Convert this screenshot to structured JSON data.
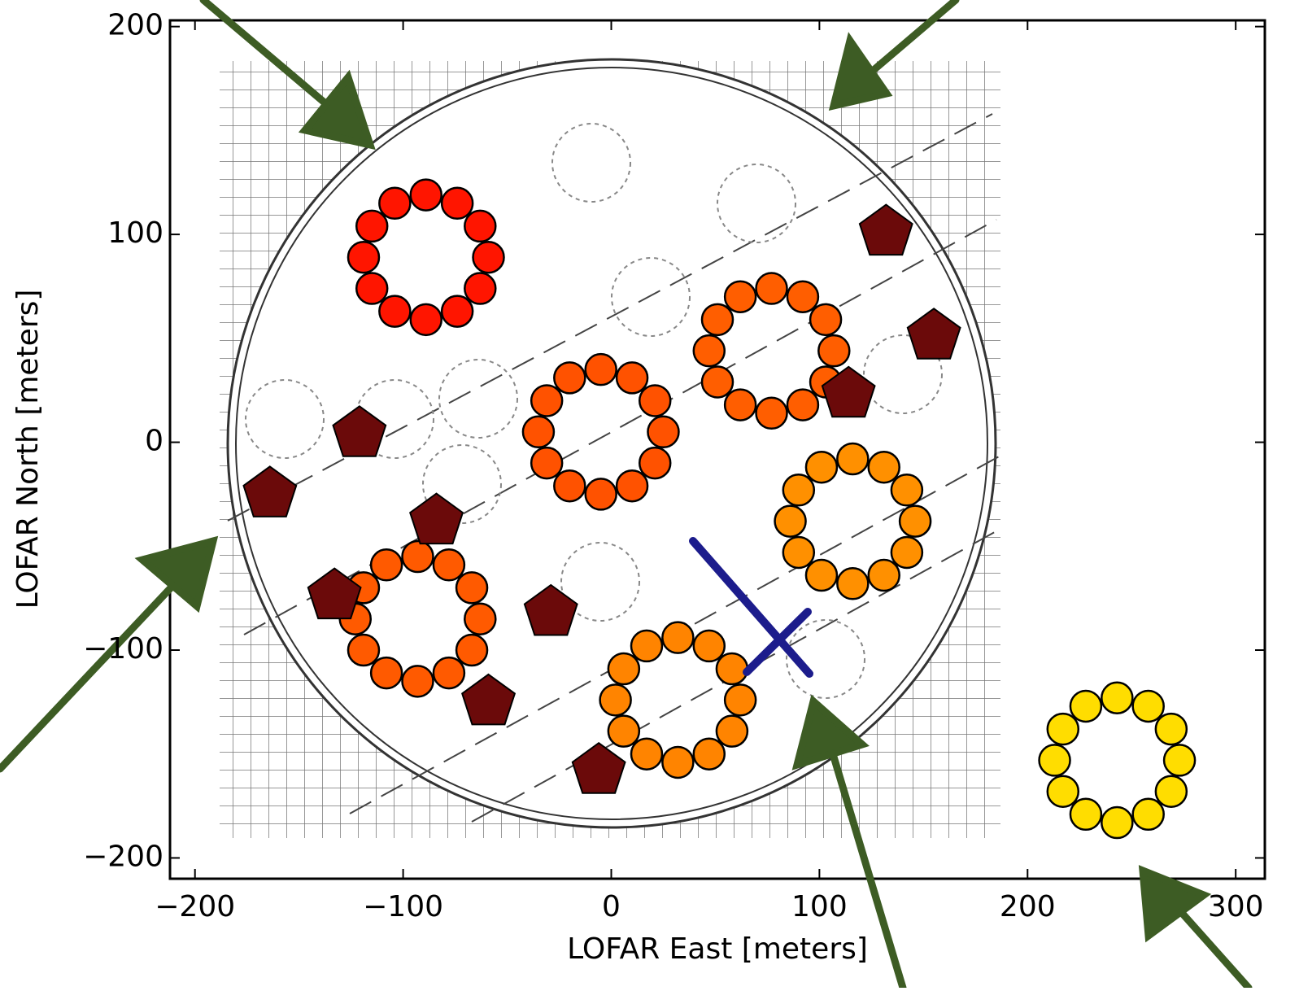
{
  "chart_data": {
    "type": "scatter",
    "xlabel": "LOFAR East [meters]",
    "ylabel": "LOFAR North [meters]",
    "xlim": [
      -212,
      314
    ],
    "ylim": [
      -210,
      203
    ],
    "xticks": [
      {
        "value": -200,
        "label": "−200"
      },
      {
        "value": -100,
        "label": "−100"
      },
      0,
      100,
      200,
      300
    ],
    "yticks": [
      {
        "value": -200,
        "label": "−200"
      },
      {
        "value": -100,
        "label": "−100"
      },
      0,
      100,
      200
    ],
    "grid": false,
    "series": [
      {
        "color": "#ff1500",
        "marker": "circle",
        "x": [
          -59,
          -63,
          -74,
          -89,
          -104,
          -115,
          -119,
          -115,
          -104,
          -89,
          -74,
          -63
        ],
        "y": [
          89,
          104,
          115,
          119,
          115,
          104,
          89,
          74,
          63,
          59,
          63,
          74
        ]
      },
      {
        "color": "#ff5200",
        "marker": "circle",
        "x": [
          25,
          21,
          10,
          -5,
          -20,
          -31,
          -35,
          -31,
          -20,
          -5,
          10,
          21
        ],
        "y": [
          5,
          20,
          31,
          35,
          31,
          20,
          5,
          -10,
          -21,
          -25,
          -21,
          -10
        ]
      },
      {
        "color": "#ff5e00",
        "marker": "circle",
        "x": [
          107,
          103,
          92,
          77,
          62,
          51,
          47,
          51,
          62,
          77,
          92,
          103
        ],
        "y": [
          44,
          59,
          70,
          74,
          70,
          59,
          44,
          29,
          18,
          14,
          18,
          29
        ]
      },
      {
        "color": "#ff5a00",
        "marker": "circle",
        "x": [
          -63,
          -67,
          -78,
          -93,
          -108,
          -119,
          -123,
          -119,
          -108,
          -93,
          -78,
          -67
        ],
        "y": [
          -85,
          -70,
          -59,
          -55,
          -59,
          -70,
          -85,
          -100,
          -111,
          -115,
          -111,
          -100
        ]
      },
      {
        "color": "#ff9000",
        "marker": "circle",
        "x": [
          146,
          142,
          131,
          116,
          101,
          90,
          86,
          90,
          101,
          116,
          131,
          142
        ],
        "y": [
          -38,
          -23,
          -12,
          -8,
          -12,
          -23,
          -38,
          -53,
          -64,
          -68,
          -64,
          -53
        ]
      },
      {
        "color": "#ff8400",
        "marker": "circle",
        "x": [
          62,
          58,
          47,
          32,
          17,
          6,
          2,
          6,
          17,
          32,
          47,
          58
        ],
        "y": [
          -124,
          -109,
          -98,
          -94,
          -98,
          -109,
          -124,
          -139,
          -150,
          -154,
          -150,
          -139
        ]
      },
      {
        "color": "#ffdd00",
        "marker": "circle",
        "x": [
          273,
          269,
          258,
          243,
          228,
          217,
          213,
          217,
          228,
          243,
          258,
          269
        ],
        "y": [
          -153,
          -138,
          -127,
          -123,
          -127,
          -138,
          -153,
          -168,
          -179,
          -183,
          -179,
          -168
        ]
      },
      {
        "color": "#6b0a0a",
        "marker": "pentagon",
        "x": [
          132,
          155,
          -121,
          -164,
          -84,
          -133,
          -29,
          -59,
          -6,
          114
        ],
        "y": [
          101,
          51,
          4,
          -25,
          -38,
          -74,
          -82,
          -125,
          -158,
          23
        ]
      }
    ]
  }
}
